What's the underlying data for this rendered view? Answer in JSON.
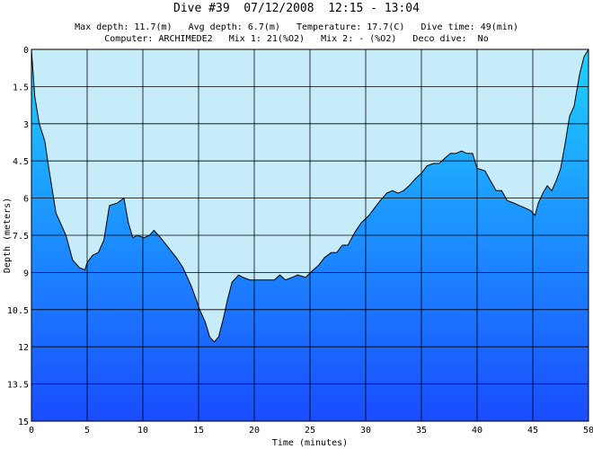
{
  "header": {
    "title": "Dive #39  07/12/2008  12:15 - 13:04",
    "info_line1": "Max depth: 11.7(m)   Avg depth: 6.7(m)   Temperature: 17.7(C)   Dive time: 49(min)",
    "info_line2": "Computer: ARCHIMEDE2   Mix 1: 21(%O2)   Mix 2: - (%O2)   Deco dive:  No"
  },
  "colors": {
    "sky": "#c6ecfa",
    "water_top": "#1fd2ff",
    "water_bottom": "#1a4cff",
    "grid": "#000000"
  },
  "chart_data": {
    "type": "area",
    "xlabel": "Time (minutes)",
    "ylabel": "Depth (meters)",
    "xlim": [
      0,
      50
    ],
    "ylim": [
      0,
      15
    ],
    "y_inverted": true,
    "grid": true,
    "x_ticks": [
      "0",
      "5",
      "10",
      "15",
      "20",
      "25",
      "30",
      "35",
      "40",
      "45",
      "50"
    ],
    "y_ticks": [
      "0",
      "1.5",
      "3",
      "4.5",
      "6",
      "7.5",
      "9",
      "10.5",
      "12",
      "13.5",
      "15"
    ],
    "x": [
      0,
      0.3,
      0.7,
      1.2,
      1.6,
      2.2,
      3.1,
      3.7,
      4.3,
      4.8,
      5.0,
      5.5,
      6.0,
      6.5,
      7.0,
      7.7,
      8.3,
      8.7,
      9.1,
      9.5,
      10.1,
      10.6,
      11.0,
      11.6,
      12.3,
      13.0,
      13.6,
      14.3,
      14.8,
      15.1,
      15.6,
      16.0,
      16.4,
      16.8,
      17.2,
      17.6,
      18.0,
      18.6,
      19.0,
      19.6,
      20.2,
      21.0,
      21.8,
      22.3,
      22.8,
      23.4,
      23.9,
      24.6,
      25.3,
      25.8,
      26.3,
      26.9,
      27.4,
      27.9,
      28.4,
      29.0,
      29.6,
      30.3,
      30.8,
      31.3,
      31.9,
      32.4,
      32.9,
      33.4,
      33.9,
      34.5,
      35.0,
      35.5,
      36.1,
      36.6,
      37.1,
      37.6,
      38.1,
      38.6,
      39.1,
      39.6,
      40.0,
      40.7,
      41.2,
      41.7,
      42.2,
      42.7,
      43.3,
      43.8,
      44.3,
      44.8,
      45.2,
      45.5,
      45.9,
      46.3,
      46.7,
      47.1,
      47.5,
      47.9,
      48.3,
      48.7,
      49.2,
      49.6,
      50.0
    ],
    "depth": [
      0,
      1.9,
      3.0,
      3.7,
      4.9,
      6.6,
      7.5,
      8.5,
      8.8,
      8.9,
      8.6,
      8.3,
      8.2,
      7.7,
      6.3,
      6.2,
      6.0,
      7.0,
      7.6,
      7.5,
      7.6,
      7.5,
      7.3,
      7.6,
      8.0,
      8.4,
      8.8,
      9.5,
      10.1,
      10.5,
      11.0,
      11.6,
      11.8,
      11.6,
      10.9,
      10.1,
      9.4,
      9.1,
      9.2,
      9.3,
      9.3,
      9.3,
      9.3,
      9.1,
      9.3,
      9.2,
      9.1,
      9.2,
      8.9,
      8.7,
      8.4,
      8.2,
      8.2,
      7.9,
      7.9,
      7.4,
      7.0,
      6.7,
      6.4,
      6.1,
      5.8,
      5.7,
      5.8,
      5.7,
      5.5,
      5.2,
      5.0,
      4.7,
      4.6,
      4.6,
      4.4,
      4.2,
      4.2,
      4.1,
      4.2,
      4.2,
      4.8,
      4.9,
      5.3,
      5.7,
      5.7,
      6.1,
      6.2,
      6.3,
      6.4,
      6.5,
      6.7,
      6.2,
      5.8,
      5.5,
      5.7,
      5.3,
      4.8,
      3.8,
      2.7,
      2.3,
      1.0,
      0.3,
      0
    ]
  }
}
